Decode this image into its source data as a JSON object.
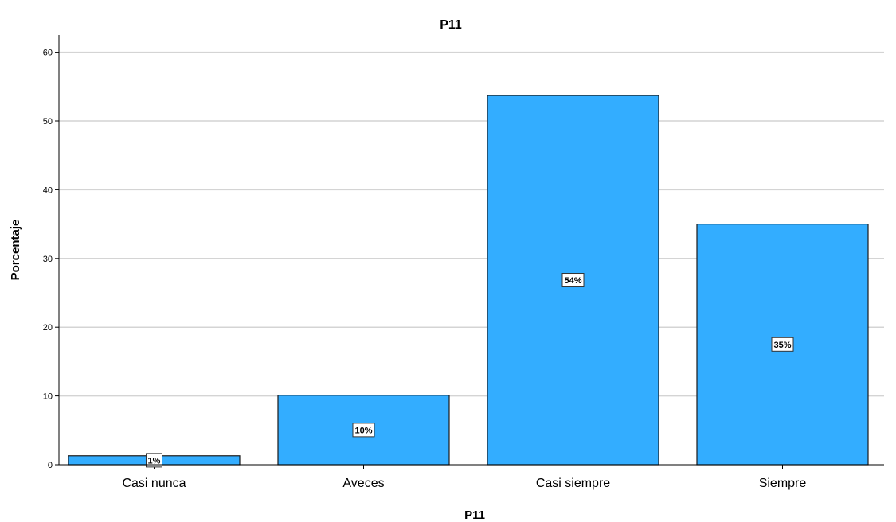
{
  "chart_data": {
    "type": "bar",
    "title": "P11",
    "xlabel": "P11",
    "ylabel": "Porcentaje",
    "categories": [
      "Casi nunca",
      "Aveces",
      "Casi siempre",
      "Siempre"
    ],
    "values": [
      1.3,
      10.1,
      53.7,
      35.0
    ],
    "data_labels": [
      "1%",
      "10%",
      "54%",
      "35%"
    ],
    "yticks": [
      "0",
      "10",
      "20",
      "30",
      "40",
      "50",
      "60"
    ],
    "ylim": [
      0,
      62.5
    ],
    "grid": true,
    "legend": "none",
    "colors": {
      "bar": "#33adff",
      "bar_stroke": "#1a1a1a",
      "grid": "#d4d4d4"
    }
  }
}
